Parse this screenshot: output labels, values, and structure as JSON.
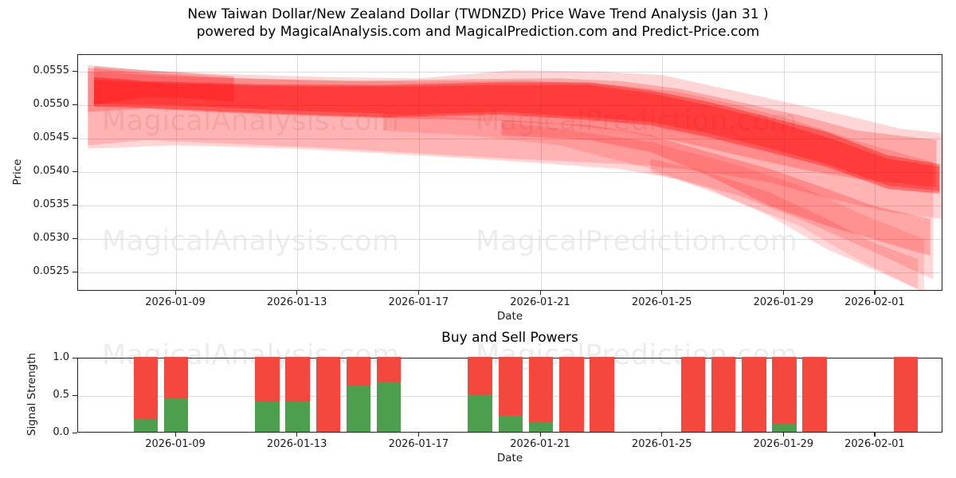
{
  "title": {
    "line1": "New Taiwan Dollar/New Zealand Dollar (TWDNZD) Price Wave Trend Analysis (Jan 31 )",
    "line2": "powered by MagicalAnalysis.com and MagicalPrediction.com and Predict-Price.com"
  },
  "watermarks": {
    "left_text": "MagicalAnalysis.com",
    "right_text": "MagicalPrediction.com"
  },
  "price_chart": {
    "ylabel": "Price",
    "xlabel": "Date",
    "yticks": [
      "0.0555",
      "0.0550",
      "0.0545",
      "0.0540",
      "0.0535",
      "0.0530",
      "0.0525"
    ],
    "xticks": [
      {
        "label": "2026-01-09",
        "t": 3
      },
      {
        "label": "2026-01-13",
        "t": 7
      },
      {
        "label": "2026-01-17",
        "t": 11
      },
      {
        "label": "2026-01-21",
        "t": 15
      },
      {
        "label": "2026-01-25",
        "t": 19
      },
      {
        "label": "2026-01-29",
        "t": 23
      },
      {
        "label": "2026-02-01",
        "t": 26
      }
    ]
  },
  "power_chart": {
    "title": "Buy and Sell Powers",
    "ylabel": "Signal Strength",
    "xlabel": "Date",
    "yticks": [
      "1.0",
      "0.5",
      "0.0"
    ],
    "xticks": [
      {
        "label": "2026-01-09",
        "t": 3
      },
      {
        "label": "2026-01-13",
        "t": 7
      },
      {
        "label": "2026-01-17",
        "t": 11
      },
      {
        "label": "2026-01-21",
        "t": 15
      },
      {
        "label": "2026-01-25",
        "t": 19
      },
      {
        "label": "2026-01-29",
        "t": 23
      },
      {
        "label": "2026-02-01",
        "t": 26
      }
    ]
  },
  "colors": {
    "band_red": "#ff0000",
    "bar_red": "#f4473e",
    "bar_green": "#4d9e4d",
    "grid": "#dcdcdc",
    "spine": "#242424",
    "watermark": "rgba(0,0,0,0.075)"
  },
  "chart_data": [
    {
      "type": "area",
      "title": "Price Wave Trend (forecast fan of translucent red bands)",
      "xlabel": "Date",
      "ylabel": "Price",
      "x_range_dates": [
        "2026-01-06",
        "2026-02-03"
      ],
      "ylim": [
        0.05222,
        0.05575
      ],
      "grid": true,
      "note": "t = days since 2026-01-06; each band is a polygon [t, price] upper edge left-to-right then lower edge right-to-left",
      "bands": [
        {
          "name": "outer-light-band",
          "opacity": 0.16,
          "points": [
            [
              0.1,
              0.0556
            ],
            [
              2,
              0.05552
            ],
            [
              5,
              0.05546
            ],
            [
              8,
              0.05542
            ],
            [
              11,
              0.0554
            ],
            [
              13,
              0.05548
            ],
            [
              14,
              0.05552
            ],
            [
              16,
              0.05551
            ],
            [
              17,
              0.0555
            ],
            [
              19,
              0.05545
            ],
            [
              21,
              0.05525
            ],
            [
              23,
              0.05505
            ],
            [
              25,
              0.05485
            ],
            [
              26.8,
              0.05465
            ],
            [
              28.2,
              0.05458
            ],
            [
              28.2,
              0.0533
            ],
            [
              26.5,
              0.0534
            ],
            [
              24.5,
              0.0536
            ],
            [
              22.5,
              0.05385
            ],
            [
              20.5,
              0.054
            ],
            [
              18.5,
              0.0541
            ],
            [
              16.5,
              0.05415
            ],
            [
              14,
              0.0542
            ],
            [
              11,
              0.05428
            ],
            [
              8,
              0.05436
            ],
            [
              5,
              0.05442
            ],
            [
              2,
              0.05448
            ],
            [
              0.1,
              0.0544
            ]
          ]
        },
        {
          "name": "wide-light-band",
          "opacity": 0.16,
          "points": [
            [
              0.1,
              0.0555
            ],
            [
              3,
              0.05543
            ],
            [
              7,
              0.05538
            ],
            [
              11,
              0.05535
            ],
            [
              14.5,
              0.05537
            ],
            [
              17.5,
              0.0553
            ],
            [
              19.5,
              0.0552
            ],
            [
              21.5,
              0.055
            ],
            [
              23.5,
              0.05475
            ],
            [
              25.5,
              0.05445
            ],
            [
              27.9,
              0.05415
            ],
            [
              27.9,
              0.0524
            ],
            [
              25.5,
              0.0529
            ],
            [
              23.5,
              0.0533
            ],
            [
              21.5,
              0.05365
            ],
            [
              19.5,
              0.0539
            ],
            [
              17.5,
              0.05405
            ],
            [
              14.5,
              0.05415
            ],
            [
              11,
              0.05425
            ],
            [
              7,
              0.05435
            ],
            [
              3,
              0.0544
            ],
            [
              0.1,
              0.05435
            ]
          ]
        },
        {
          "name": "steep-lower-finger",
          "opacity": 0.13,
          "points": [
            [
              9.8,
              0.0549
            ],
            [
              12.7,
              0.0548
            ],
            [
              15.6,
              0.05465
            ],
            [
              18.6,
              0.05445
            ],
            [
              21.5,
              0.0541
            ],
            [
              23.5,
              0.0538
            ],
            [
              25.4,
              0.0534
            ],
            [
              27.6,
              0.053
            ],
            [
              27.6,
              0.0522
            ],
            [
              25.4,
              0.0527
            ],
            [
              23.5,
              0.0532
            ],
            [
              21.5,
              0.05355
            ],
            [
              18.6,
              0.05405
            ],
            [
              15.6,
              0.0544
            ],
            [
              12.7,
              0.05455
            ],
            [
              9.8,
              0.05462
            ]
          ]
        },
        {
          "name": "mid-band",
          "opacity": 0.22,
          "points": [
            [
              0.1,
              0.05556
            ],
            [
              2,
              0.05548
            ],
            [
              5,
              0.0554
            ],
            [
              8.8,
              0.05536
            ],
            [
              12.7,
              0.05539
            ],
            [
              15.6,
              0.0554
            ],
            [
              17.6,
              0.05536
            ],
            [
              19.6,
              0.05524
            ],
            [
              21.5,
              0.05505
            ],
            [
              23.5,
              0.05485
            ],
            [
              25.4,
              0.05462
            ],
            [
              28,
              0.05448
            ],
            [
              28,
              0.05378
            ],
            [
              25.4,
              0.0539
            ],
            [
              23.5,
              0.05405
            ],
            [
              21.5,
              0.05425
            ],
            [
              19.6,
              0.05445
            ],
            [
              17.6,
              0.05462
            ],
            [
              15.6,
              0.05472
            ],
            [
              12.7,
              0.05478
            ],
            [
              8.8,
              0.05482
            ],
            [
              5,
              0.05488
            ],
            [
              2,
              0.05495
            ],
            [
              0.1,
              0.0549
            ]
          ]
        },
        {
          "name": "core-band",
          "opacity": 0.38,
          "points": [
            [
              0.3,
              0.05542
            ],
            [
              2,
              0.05536
            ],
            [
              5.9,
              0.05531
            ],
            [
              9.8,
              0.0553
            ],
            [
              13.7,
              0.05534
            ],
            [
              16.6,
              0.05534
            ],
            [
              18.6,
              0.05522
            ],
            [
              20.5,
              0.05505
            ],
            [
              22.5,
              0.05482
            ],
            [
              24.4,
              0.0546
            ],
            [
              26.4,
              0.05425
            ],
            [
              28.1,
              0.05412
            ],
            [
              28.1,
              0.05368
            ],
            [
              26.4,
              0.05375
            ],
            [
              24.4,
              0.05408
            ],
            [
              22.5,
              0.0543
            ],
            [
              20.5,
              0.05452
            ],
            [
              18.6,
              0.0547
            ],
            [
              16.6,
              0.05478
            ],
            [
              13.7,
              0.05486
            ],
            [
              9.8,
              0.05482
            ],
            [
              5.9,
              0.05488
            ],
            [
              2,
              0.05496
            ],
            [
              0.3,
              0.05498
            ]
          ]
        },
        {
          "name": "core-band-inner",
          "opacity": 0.3,
          "points": [
            [
              0.3,
              0.05538
            ],
            [
              2.9,
              0.05532
            ],
            [
              6.8,
              0.05528
            ],
            [
              10.8,
              0.05528
            ],
            [
              13.7,
              0.0553
            ],
            [
              16.6,
              0.0553
            ],
            [
              18.6,
              0.05518
            ],
            [
              20.5,
              0.055
            ],
            [
              22.5,
              0.05478
            ],
            [
              24.4,
              0.05452
            ],
            [
              26.4,
              0.0542
            ],
            [
              28.1,
              0.05408
            ],
            [
              28.1,
              0.05372
            ],
            [
              26.4,
              0.0538
            ],
            [
              24.4,
              0.05412
            ],
            [
              22.5,
              0.05436
            ],
            [
              20.5,
              0.05458
            ],
            [
              18.6,
              0.05475
            ],
            [
              16.6,
              0.05482
            ],
            [
              13.7,
              0.0549
            ],
            [
              10.8,
              0.05486
            ],
            [
              6.8,
              0.05492
            ],
            [
              2.9,
              0.055
            ],
            [
              0.3,
              0.05502
            ]
          ]
        },
        {
          "name": "lower-mid-band",
          "opacity": 0.22,
          "points": [
            [
              13.7,
              0.05478
            ],
            [
              16.6,
              0.0547
            ],
            [
              18.6,
              0.05455
            ],
            [
              20.5,
              0.0543
            ],
            [
              22.5,
              0.05405
            ],
            [
              24.4,
              0.05375
            ],
            [
              25.9,
              0.0535
            ],
            [
              27.8,
              0.0533
            ],
            [
              27.8,
              0.05275
            ],
            [
              25.9,
              0.053
            ],
            [
              24.4,
              0.0532
            ],
            [
              22.5,
              0.0535
            ],
            [
              20.5,
              0.05395
            ],
            [
              18.6,
              0.0543
            ],
            [
              16.6,
              0.05448
            ],
            [
              13.7,
              0.05455
            ]
          ]
        },
        {
          "name": "left-dark-pocket",
          "opacity": 0.25,
          "points": [
            [
              0.3,
              0.05558
            ],
            [
              2,
              0.05552
            ],
            [
              3.4,
              0.05548
            ],
            [
              4.9,
              0.05543
            ],
            [
              4.9,
              0.05505
            ],
            [
              3.4,
              0.0551
            ],
            [
              2,
              0.05512
            ],
            [
              0.3,
              0.055
            ]
          ]
        },
        {
          "name": "lowest-light-finger",
          "opacity": 0.15,
          "points": [
            [
              18.6,
              0.0542
            ],
            [
              20.5,
              0.054
            ],
            [
              22.5,
              0.0537
            ],
            [
              24.4,
              0.0533
            ],
            [
              25.9,
              0.05295
            ],
            [
              27.4,
              0.0527
            ],
            [
              27.4,
              0.05225
            ],
            [
              25.9,
              0.05255
            ],
            [
              24.4,
              0.05285
            ],
            [
              22.5,
              0.05335
            ],
            [
              20.5,
              0.05375
            ],
            [
              18.6,
              0.054
            ]
          ]
        }
      ]
    },
    {
      "type": "bar",
      "title": "Buy and Sell Powers",
      "xlabel": "Date",
      "ylabel": "Signal Strength",
      "ylim": [
        0,
        1.0
      ],
      "yticks": [
        1.0,
        0.5,
        0.0
      ],
      "categories": [
        "2026-01-08",
        "2026-01-09",
        "2026-01-12",
        "2026-01-13",
        "2026-01-14",
        "2026-01-15",
        "2026-01-16",
        "2026-01-19",
        "2026-01-20",
        "2026-01-21",
        "2026-01-22",
        "2026-01-23",
        "2026-01-26",
        "2026-01-27",
        "2026-01-28",
        "2026-01-29",
        "2026-01-30",
        "2026-02-02"
      ],
      "t": [
        2,
        3,
        6,
        7,
        8,
        9,
        10,
        13,
        14,
        15,
        16,
        17,
        20,
        21,
        22,
        23,
        24,
        27
      ],
      "series": [
        {
          "name": "buy",
          "color": "#4d9e4d",
          "values": [
            0.17,
            0.45,
            0.4,
            0.4,
            0.0,
            0.62,
            0.67,
            0.5,
            0.22,
            0.13,
            0.0,
            0.0,
            0.0,
            0.0,
            0.0,
            0.12,
            0.0,
            0.0
          ]
        },
        {
          "name": "sell",
          "color": "#f4473e",
          "values": [
            0.83,
            0.55,
            0.6,
            0.6,
            1.0,
            0.38,
            0.33,
            0.5,
            0.78,
            0.87,
            1.0,
            1.0,
            1.0,
            1.0,
            1.0,
            0.88,
            1.0,
            1.0
          ]
        }
      ]
    }
  ]
}
